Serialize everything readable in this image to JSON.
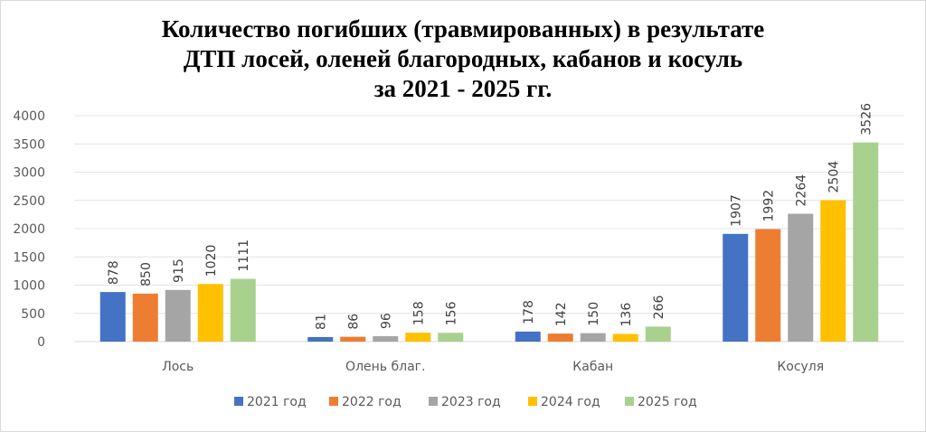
{
  "chart_data": {
    "type": "bar",
    "title_lines": [
      "Количество погибших (травмированных) в результате",
      "ДТП лосей, оленей благородных, кабанов и косуль",
      "за 2021 - 2025 гг."
    ],
    "categories": [
      "Лось",
      "Олень благ.",
      "Кабан",
      "Косуля"
    ],
    "series": [
      {
        "name": "2021 год",
        "color": "#4472c4",
        "values": [
          878,
          81,
          178,
          1907
        ]
      },
      {
        "name": "2022 год",
        "color": "#ed7d31",
        "values": [
          850,
          86,
          142,
          1992
        ]
      },
      {
        "name": "2023 год",
        "color": "#a5a5a5",
        "values": [
          915,
          96,
          150,
          2264
        ]
      },
      {
        "name": "2024 год",
        "color": "#ffc000",
        "values": [
          1020,
          158,
          136,
          2504
        ]
      },
      {
        "name": "2025 год",
        "color": "#a9d18e",
        "values": [
          1111,
          156,
          266,
          3526
        ]
      }
    ],
    "ylim": [
      0,
      4000
    ],
    "yticks": [
      0,
      500,
      1000,
      1500,
      2000,
      2500,
      3000,
      3500,
      4000
    ],
    "grid": true,
    "legend_position": "bottom",
    "data_labels": true
  }
}
